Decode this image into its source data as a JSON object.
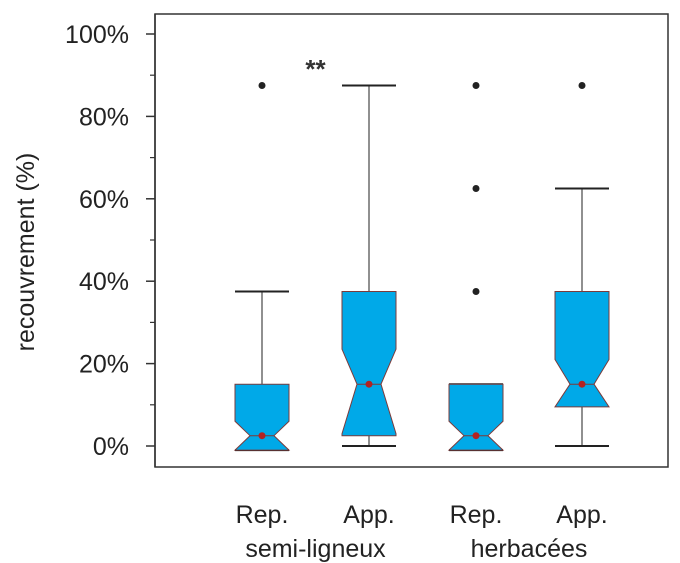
{
  "chart_data": {
    "type": "box",
    "ylabel": "recouvrement (%)",
    "ylim": [
      0,
      100
    ],
    "yticks": [
      0,
      20,
      40,
      60,
      80,
      100
    ],
    "ytick_labels": [
      "0%",
      "20%",
      "40%",
      "60%",
      "80%",
      "100%"
    ],
    "categories": [
      "Rep.",
      "App.",
      "Rep.",
      "App."
    ],
    "groups": [
      {
        "label": "semi-ligneux",
        "members": [
          0,
          1
        ]
      },
      {
        "label": "herbacées",
        "members": [
          2,
          3
        ]
      }
    ],
    "boxes": [
      {
        "category": "Rep.",
        "whisker_low": -1,
        "q1": -1,
        "median": 2.5,
        "q3": 15,
        "whisker_high": 37.5,
        "notch_low": -1,
        "notch_high": 6,
        "mean": 2.5,
        "outliers": [
          87.5
        ]
      },
      {
        "category": "App.",
        "whisker_low": 0,
        "q1": 2.5,
        "median": 15,
        "q3": 37.5,
        "whisker_high": 87.5,
        "notch_low": 3,
        "notch_high": 23.5,
        "mean": 15,
        "outliers": []
      },
      {
        "category": "Rep.",
        "whisker_low": -1,
        "q1": -1,
        "median": 2.5,
        "q3": 15,
        "whisker_high": 15,
        "notch_low": -1,
        "notch_high": 6,
        "mean": 2.5,
        "outliers": [
          37.5,
          62.5,
          87.5
        ]
      },
      {
        "category": "App.",
        "whisker_low": 0,
        "q1": 9.5,
        "median": 15,
        "q3": 37.5,
        "whisker_high": 62.5,
        "notch_low": 9.5,
        "notch_high": 21,
        "mean": 15,
        "outliers": [
          87.5
        ]
      }
    ],
    "annotations": [
      {
        "text": "**",
        "between": [
          0,
          1
        ]
      }
    ],
    "colors": {
      "box_fill": "#00a9e8",
      "box_edge": "#7a3b3b",
      "mean_dot": "#b22222",
      "line": "#222222"
    }
  }
}
